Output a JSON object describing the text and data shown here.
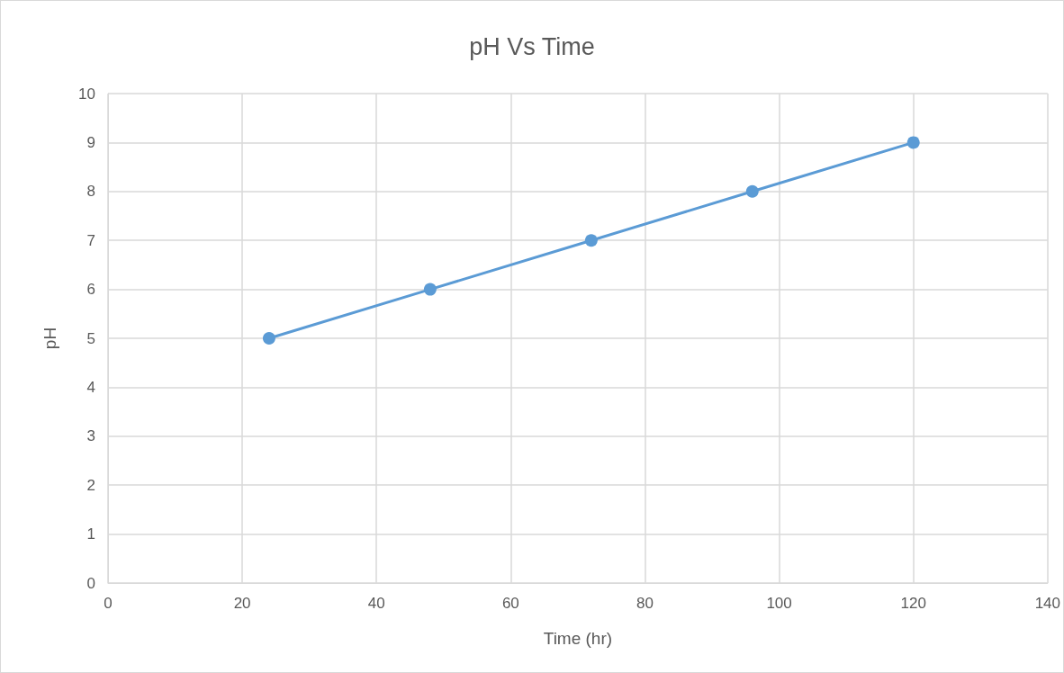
{
  "chart_data": {
    "type": "line",
    "title": "pH Vs Time",
    "xlabel": "Time (hr)",
    "ylabel": "pH",
    "x": [
      24,
      48,
      72,
      96,
      120
    ],
    "series": [
      {
        "color": "#5b9bd5",
        "values": [
          5,
          6,
          7,
          8,
          9
        ]
      }
    ],
    "xlim": [
      0,
      140
    ],
    "xticks": [
      0,
      20,
      40,
      60,
      80,
      100,
      120,
      140
    ],
    "ylim": [
      0,
      10
    ],
    "yticks": [
      0,
      1,
      2,
      3,
      4,
      5,
      6,
      7,
      8,
      9,
      10
    ],
    "grid": true,
    "marker": "circle",
    "line_style": "solid"
  }
}
